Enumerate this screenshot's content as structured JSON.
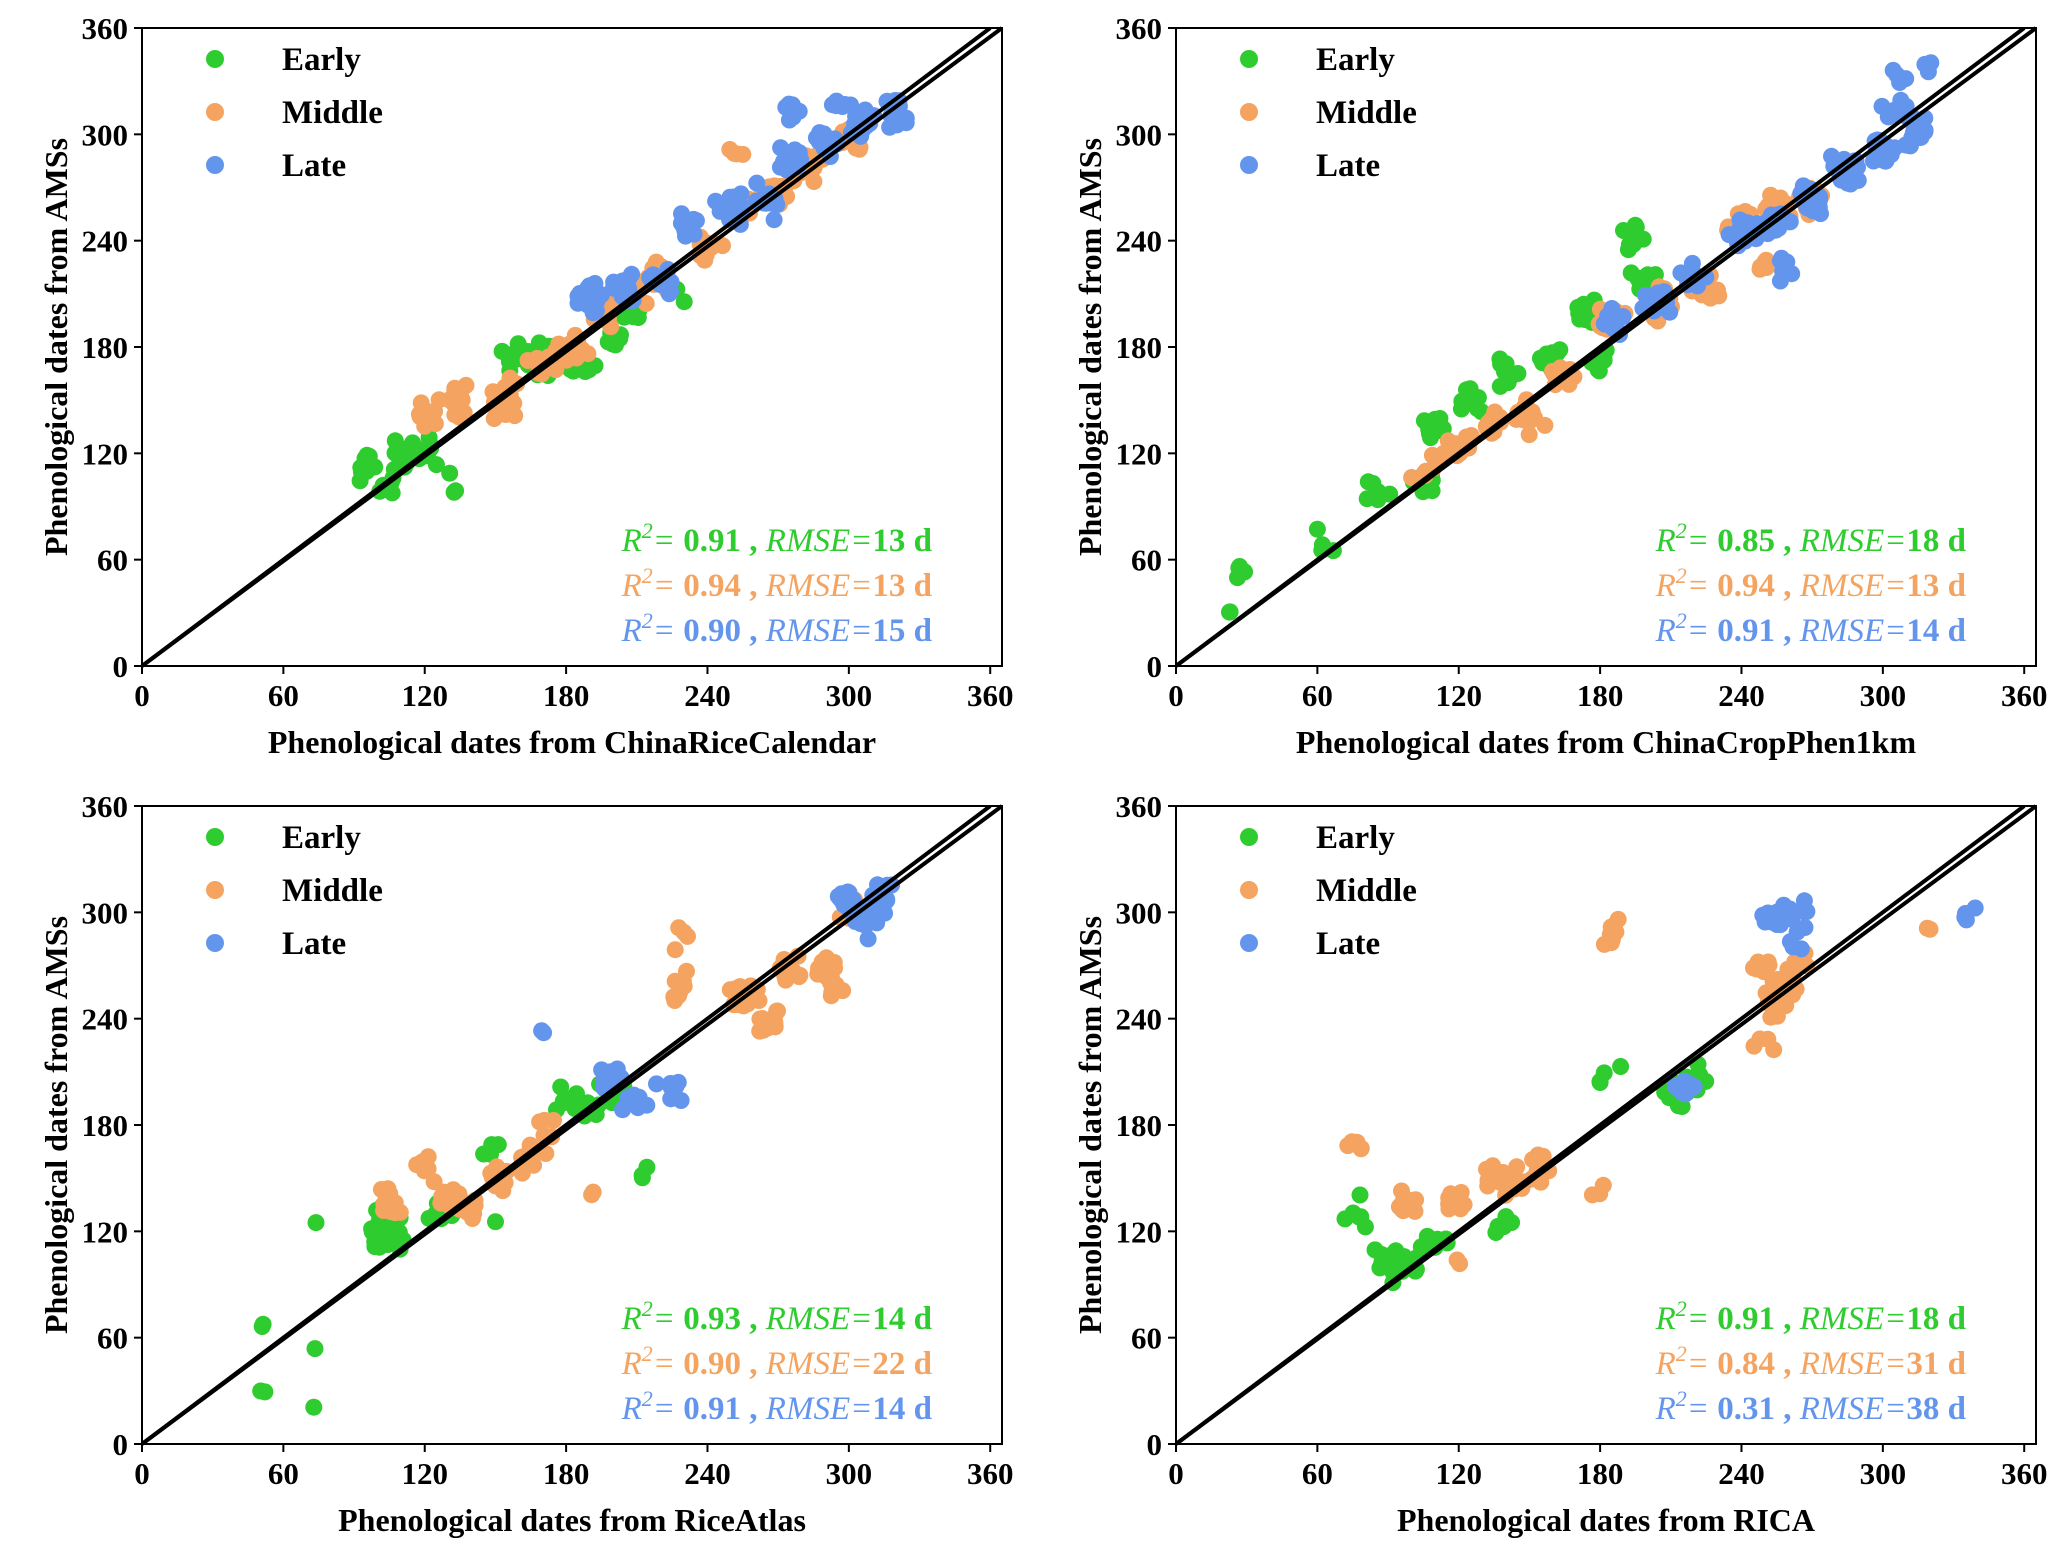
{
  "colors": {
    "early": "#2ecc2e",
    "middle": "#f4a460",
    "late": "#6495ed",
    "line": "#000000"
  },
  "chart_data": [
    {
      "type": "scatter",
      "xlabel": "Phenological dates from ChinaRiceCalendar",
      "ylabel": "Phenological dates from AMSs",
      "xlim": [
        0,
        365
      ],
      "ylim": [
        0,
        360
      ],
      "ticks": [
        "0",
        "60",
        "120",
        "180",
        "240",
        "300",
        "360"
      ],
      "grid": false,
      "legend_position": "top-left",
      "reference_line": "1:1",
      "series": [
        {
          "name": "Early",
          "r2": "0.91",
          "rmse": "13",
          "clusters": [
            [
              95,
              112,
              18
            ],
            [
              110,
              118,
              14
            ],
            [
              104,
              100,
              6
            ],
            [
              120,
              122,
              8
            ],
            [
              132,
              100,
              3
            ],
            [
              155,
              175,
              6
            ],
            [
              170,
              172,
              14
            ],
            [
              185,
              170,
              10
            ],
            [
              200,
              188,
              10
            ],
            [
              210,
              196,
              8
            ],
            [
              228,
              205,
              3
            ],
            [
              175,
              172,
              6
            ],
            [
              165,
              176,
              5
            ]
          ]
        },
        {
          "name": "Middle",
          "r2": "0.94",
          "rmse": "13",
          "clusters": [
            [
              120,
              145,
              10
            ],
            [
              135,
              152,
              14
            ],
            [
              152,
              148,
              12
            ],
            [
              170,
              170,
              14
            ],
            [
              155,
              160,
              6
            ],
            [
              185,
              180,
              10
            ],
            [
              195,
              198,
              8
            ],
            [
              210,
              215,
              10
            ],
            [
              220,
              222,
              16
            ],
            [
              240,
              235,
              14
            ],
            [
              255,
              260,
              12
            ],
            [
              270,
              268,
              14
            ],
            [
              285,
              282,
              14
            ],
            [
              300,
              298,
              10
            ],
            [
              255,
              290,
              4
            ],
            [
              180,
              178,
              6
            ]
          ]
        },
        {
          "name": "Late",
          "r2": "0.90",
          "rmse": "15",
          "clusters": [
            [
              190,
              208,
              18
            ],
            [
              205,
              212,
              16
            ],
            [
              222,
              215,
              10
            ],
            [
              232,
              250,
              12
            ],
            [
              250,
              258,
              16
            ],
            [
              265,
              262,
              14
            ],
            [
              275,
              285,
              16
            ],
            [
              290,
              295,
              18
            ],
            [
              305,
              305,
              16
            ],
            [
              320,
              310,
              12
            ],
            [
              275,
              312,
              6
            ],
            [
              295,
              318,
              6
            ]
          ]
        }
      ]
    },
    {
      "type": "scatter",
      "xlabel": "Phenological dates from ChinaCropPhen1km",
      "ylabel": "Phenological dates from AMSs",
      "xlim": [
        0,
        365
      ],
      "ylim": [
        0,
        360
      ],
      "ticks": [
        "0",
        "60",
        "120",
        "180",
        "240",
        "300",
        "360"
      ],
      "grid": false,
      "legend_position": "top-left",
      "reference_line": "1:1",
      "series": [
        {
          "name": "Early",
          "r2": "0.85",
          "rmse": "18",
          "clusters": [
            [
              28,
              55,
              4
            ],
            [
              60,
              70,
              4
            ],
            [
              85,
              95,
              6
            ],
            [
              105,
              105,
              14
            ],
            [
              110,
              135,
              14
            ],
            [
              125,
              150,
              10
            ],
            [
              140,
              165,
              10
            ],
            [
              160,
              175,
              12
            ],
            [
              175,
              200,
              14
            ],
            [
              180,
              170,
              8
            ],
            [
              195,
              240,
              12
            ],
            [
              200,
              215,
              14
            ],
            [
              22,
              30,
              2
            ]
          ]
        },
        {
          "name": "Middle",
          "r2": "0.94",
          "rmse": "13",
          "clusters": [
            [
              105,
              110,
              8
            ],
            [
              120,
              125,
              16
            ],
            [
              135,
              135,
              16
            ],
            [
              150,
              140,
              16
            ],
            [
              165,
              165,
              14
            ],
            [
              185,
              195,
              14
            ],
            [
              205,
              205,
              16
            ],
            [
              225,
              215,
              14
            ],
            [
              240,
              250,
              14
            ],
            [
              255,
              258,
              18
            ],
            [
              270,
              265,
              14
            ],
            [
              250,
              228,
              6
            ]
          ]
        },
        {
          "name": "Late",
          "r2": "0.91",
          "rmse": "14",
          "clusters": [
            [
              185,
              195,
              14
            ],
            [
              205,
              205,
              22
            ],
            [
              220,
              220,
              10
            ],
            [
              240,
              245,
              20
            ],
            [
              255,
              250,
              22
            ],
            [
              270,
              262,
              20
            ],
            [
              285,
              280,
              20
            ],
            [
              300,
              290,
              20
            ],
            [
              315,
              300,
              16
            ],
            [
              305,
              315,
              10
            ],
            [
              310,
              330,
              4
            ],
            [
              320,
              340,
              3
            ],
            [
              260,
              225,
              6
            ]
          ]
        }
      ]
    },
    {
      "type": "scatter",
      "xlabel": "Phenological dates from RiceAtlas",
      "ylabel": "Phenological dates from AMSs",
      "xlim": [
        0,
        365
      ],
      "ylim": [
        0,
        360
      ],
      "ticks": [
        "0",
        "60",
        "120",
        "180",
        "240",
        "300",
        "360"
      ],
      "grid": false,
      "legend_position": "top-left",
      "reference_line": "1:1",
      "series": [
        {
          "name": "Early",
          "r2": "0.93",
          "rmse": "14",
          "clusters": [
            [
              51,
              68,
              2
            ],
            [
              51,
              30,
              2
            ],
            [
              74,
              55,
              1
            ],
            [
              74,
              22,
              1
            ],
            [
              74,
              125,
              1
            ],
            [
              100,
              115,
              16
            ],
            [
              103,
              125,
              16
            ],
            [
              107,
              118,
              8
            ],
            [
              125,
              128,
              6
            ],
            [
              150,
              165,
              4
            ],
            [
              150,
              125,
              1
            ],
            [
              180,
              195,
              8
            ],
            [
              200,
              200,
              16
            ],
            [
              212,
              155,
              3
            ],
            [
              190,
              190,
              6
            ]
          ]
        },
        {
          "name": "Middle",
          "r2": "0.90",
          "rmse": "22",
          "clusters": [
            [
              105,
              135,
              18
            ],
            [
              120,
              155,
              6
            ],
            [
              133,
              140,
              14
            ],
            [
              140,
              130,
              6
            ],
            [
              150,
              150,
              10
            ],
            [
              165,
              160,
              12
            ],
            [
              170,
              180,
              6
            ],
            [
              192,
              142,
              2
            ],
            [
              230,
              260,
              8
            ],
            [
              255,
              255,
              22
            ],
            [
              265,
              240,
              14
            ],
            [
              275,
              270,
              14
            ],
            [
              290,
              270,
              12
            ],
            [
              300,
              300,
              10
            ],
            [
              295,
              255,
              6
            ],
            [
              230,
              285,
              4
            ]
          ]
        },
        {
          "name": "Late",
          "r2": "0.91",
          "rmse": "14",
          "clusters": [
            [
              170,
              232,
              2
            ],
            [
              200,
              205,
              10
            ],
            [
              210,
              195,
              10
            ],
            [
              225,
              200,
              10
            ],
            [
              300,
              305,
              22
            ],
            [
              310,
              300,
              22
            ],
            [
              315,
              310,
              10
            ],
            [
              305,
              292,
              8
            ]
          ]
        }
      ]
    },
    {
      "type": "scatter",
      "xlabel": "Phenological dates from RICA",
      "ylabel": "Phenological dates from AMSs",
      "xlim": [
        0,
        365
      ],
      "ylim": [
        0,
        360
      ],
      "ticks": [
        "0",
        "60",
        "120",
        "180",
        "240",
        "300",
        "360"
      ],
      "grid": false,
      "legend_position": "top-left",
      "reference_line": "1:1",
      "series": [
        {
          "name": "Early",
          "r2": "0.91",
          "rmse": "18",
          "clusters": [
            [
              75,
              130,
              6
            ],
            [
              88,
              105,
              10
            ],
            [
              96,
              100,
              12
            ],
            [
              110,
              118,
              8
            ],
            [
              140,
              125,
              6
            ],
            [
              182,
              205,
              4
            ],
            [
              213,
              198,
              14
            ],
            [
              220,
              205,
              8
            ]
          ]
        },
        {
          "name": "Middle",
          "r2": "0.84",
          "rmse": "31",
          "clusters": [
            [
              75,
              168,
              6
            ],
            [
              98,
              135,
              12
            ],
            [
              120,
              135,
              10
            ],
            [
              120,
              102,
              2
            ],
            [
              135,
              148,
              10
            ],
            [
              145,
              150,
              10
            ],
            [
              155,
              155,
              10
            ],
            [
              185,
              290,
              8
            ],
            [
              182,
              140,
              3
            ],
            [
              250,
              270,
              10
            ],
            [
              255,
              250,
              16
            ],
            [
              260,
              260,
              12
            ],
            [
              265,
              275,
              6
            ],
            [
              250,
              225,
              4
            ],
            [
              320,
              290,
              2
            ]
          ]
        },
        {
          "name": "Late",
          "r2": "0.31",
          "rmse": "38",
          "clusters": [
            [
              218,
              198,
              8
            ],
            [
              255,
              295,
              10
            ],
            [
              263,
              300,
              8
            ],
            [
              263,
              282,
              4
            ],
            [
              335,
              298,
              4
            ]
          ]
        }
      ]
    }
  ]
}
